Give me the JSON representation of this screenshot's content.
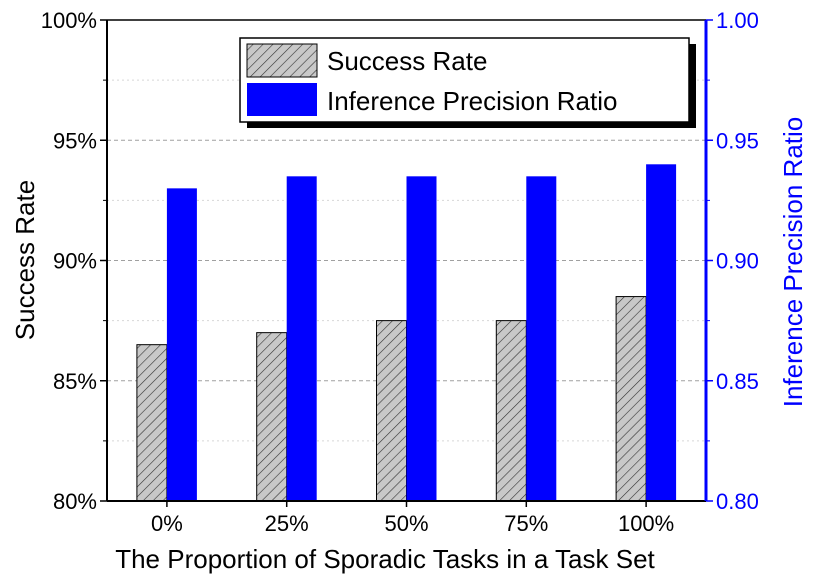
{
  "chart_data": {
    "type": "bar",
    "categories": [
      "0%",
      "25%",
      "50%",
      "75%",
      "100%"
    ],
    "series": [
      {
        "name": "Success Rate",
        "axis": "left",
        "values": [
          86.5,
          87.0,
          87.5,
          87.5,
          88.5
        ],
        "color": "#c0c0c0",
        "pattern": "diagonal-hatch"
      },
      {
        "name": "Inference Precision Ratio",
        "axis": "right",
        "values": [
          0.93,
          0.935,
          0.935,
          0.935,
          0.94
        ],
        "color": "#0000ff"
      }
    ],
    "xlabel": "The Proportion of Sporadic Tasks in a Task Set",
    "ylabel": "Success Rate",
    "y2label": "Inference Precision Ratio",
    "ylim": [
      80,
      100
    ],
    "y2lim": [
      0.8,
      1.0
    ],
    "yticks": [
      "80%",
      "85%",
      "90%",
      "95%",
      "100%"
    ],
    "yticks_values": [
      80,
      85,
      90,
      95,
      100
    ],
    "y2ticks": [
      "0.80",
      "0.85",
      "0.90",
      "0.95",
      "1.00"
    ],
    "y2ticks_values": [
      0.8,
      0.85,
      0.9,
      0.95,
      1.0
    ],
    "grid": "horizontal-dashed",
    "legend_position": "top-right",
    "right_axis_color": "#0000ff"
  }
}
